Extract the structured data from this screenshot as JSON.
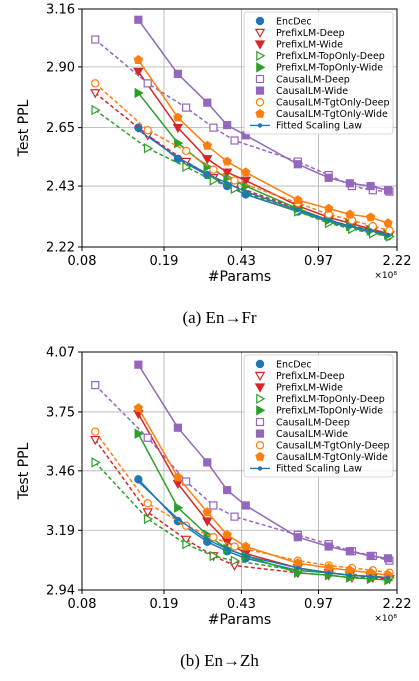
{
  "chart_data": [
    {
      "type": "line",
      "caption": "(a)  En→Fr",
      "xlabel": "#Params",
      "ylabel": "Test PPL",
      "x_multiplier": "×10⁸",
      "xlim": [
        0.08,
        2.22
      ],
      "ylim": [
        2.22,
        3.16
      ],
      "xticks": [
        "0.08",
        "0.19",
        "0.43",
        "0.97",
        "2.22"
      ],
      "yticks": [
        "2.22",
        "2.43",
        "2.65",
        "2.90",
        "3.16"
      ],
      "grid": true,
      "legend_position": "upper right",
      "series": [
        {
          "name": "EncDec",
          "color": "#1f77b4",
          "marker": "circle",
          "filled": true,
          "dashed": false,
          "x": [
            0.145,
            0.22,
            0.3,
            0.37,
            0.45,
            0.78,
            1.08,
            1.35,
            1.68,
            2.02
          ],
          "y": [
            2.65,
            2.53,
            2.47,
            2.43,
            2.4,
            2.34,
            2.305,
            2.285,
            2.27,
            2.255
          ]
        },
        {
          "name": "PrefixLM-Deep",
          "color": "#d62728",
          "marker": "triangle-down",
          "filled": false,
          "dashed": true,
          "x": [
            0.092,
            0.16,
            0.24,
            0.32,
            0.4,
            0.78,
            1.08,
            1.38,
            1.72,
            2.05
          ],
          "y": [
            2.79,
            2.62,
            2.52,
            2.46,
            2.43,
            2.35,
            2.31,
            2.29,
            2.275,
            2.26
          ]
        },
        {
          "name": "PrefixLM-Wide",
          "color": "#d62728",
          "marker": "triangle-down",
          "filled": true,
          "dashed": false,
          "x": [
            0.145,
            0.22,
            0.3,
            0.37,
            0.45,
            0.78,
            1.08,
            1.35,
            1.68,
            2.02
          ],
          "y": [
            2.88,
            2.65,
            2.53,
            2.48,
            2.45,
            2.36,
            2.32,
            2.3,
            2.28,
            2.265
          ]
        },
        {
          "name": "PrefixLM-TopOnly-Deep",
          "color": "#2ca02c",
          "marker": "triangle-right",
          "filled": false,
          "dashed": true,
          "x": [
            0.092,
            0.16,
            0.24,
            0.32,
            0.4,
            0.78,
            1.08,
            1.38,
            1.72,
            2.05
          ],
          "y": [
            2.72,
            2.57,
            2.5,
            2.45,
            2.42,
            2.34,
            2.3,
            2.28,
            2.265,
            2.255
          ]
        },
        {
          "name": "PrefixLM-TopOnly-Wide",
          "color": "#2ca02c",
          "marker": "triangle-right",
          "filled": true,
          "dashed": false,
          "x": [
            0.145,
            0.22,
            0.3,
            0.37,
            0.45,
            0.78,
            1.08,
            1.35,
            1.68,
            2.02
          ],
          "y": [
            2.79,
            2.59,
            2.5,
            2.46,
            2.43,
            2.35,
            2.31,
            2.29,
            2.275,
            2.26
          ]
        },
        {
          "name": "CausalLM-Deep",
          "color": "#9467bd",
          "marker": "square",
          "filled": false,
          "dashed": true,
          "x": [
            0.092,
            0.16,
            0.24,
            0.32,
            0.4,
            0.78,
            1.08,
            1.38,
            1.72,
            2.05
          ],
          "y": [
            3.02,
            2.83,
            2.73,
            2.65,
            2.6,
            2.52,
            2.47,
            2.43,
            2.415,
            2.41
          ]
        },
        {
          "name": "CausalLM-Wide",
          "color": "#9467bd",
          "marker": "square",
          "filled": true,
          "dashed": false,
          "x": [
            0.145,
            0.22,
            0.3,
            0.37,
            0.45,
            0.78,
            1.08,
            1.35,
            1.68,
            2.02
          ],
          "y": [
            3.11,
            2.87,
            2.75,
            2.66,
            2.62,
            2.51,
            2.46,
            2.44,
            2.43,
            2.415
          ]
        },
        {
          "name": "CausalLM-TgtOnly-Deep",
          "color": "#ff7f0e",
          "marker": "circle",
          "filled": false,
          "dashed": true,
          "x": [
            0.092,
            0.16,
            0.24,
            0.32,
            0.4,
            0.78,
            1.08,
            1.38,
            1.72,
            2.05
          ],
          "y": [
            2.83,
            2.64,
            2.56,
            2.49,
            2.45,
            2.37,
            2.33,
            2.31,
            2.29,
            2.275
          ]
        },
        {
          "name": "CausalLM-TgtOnly-Wide",
          "color": "#ff7f0e",
          "marker": "pentagon",
          "filled": true,
          "dashed": false,
          "x": [
            0.145,
            0.22,
            0.3,
            0.37,
            0.45,
            0.78,
            1.08,
            1.35,
            1.68,
            2.02
          ],
          "y": [
            2.93,
            2.69,
            2.58,
            2.52,
            2.48,
            2.38,
            2.35,
            2.33,
            2.32,
            2.3
          ]
        },
        {
          "name": "Fitted Scaling Law",
          "color": "#1f77b4",
          "marker": "dot",
          "filled": true,
          "dashed": false,
          "style": "fit",
          "x": [
            0.145,
            0.22,
            0.3,
            0.37,
            0.45,
            0.78,
            1.08,
            1.35,
            1.68,
            2.02
          ],
          "y": [
            2.64,
            2.535,
            2.475,
            2.44,
            2.41,
            2.345,
            2.31,
            2.29,
            2.275,
            2.26
          ]
        }
      ]
    },
    {
      "type": "line",
      "caption": "(b)  En→Zh",
      "xlabel": "#Params",
      "ylabel": "Test PPL",
      "x_multiplier": "×10⁸",
      "xlim": [
        0.08,
        2.22
      ],
      "ylim": [
        2.94,
        4.07
      ],
      "xticks": [
        "0.08",
        "0.19",
        "0.43",
        "0.97",
        "2.22"
      ],
      "yticks": [
        "2.94",
        "3.19",
        "3.46",
        "3.75",
        "4.07"
      ],
      "grid": true,
      "legend_position": "upper right",
      "series": [
        {
          "name": "EncDec",
          "color": "#1f77b4",
          "marker": "circle",
          "filled": true,
          "dashed": false,
          "x": [
            0.145,
            0.22,
            0.3,
            0.37,
            0.45,
            0.78,
            1.08,
            1.35,
            1.68,
            2.02
          ],
          "y": [
            3.42,
            3.23,
            3.14,
            3.1,
            3.07,
            3.02,
            3.01,
            3.0,
            2.995,
            2.99
          ]
        },
        {
          "name": "PrefixLM-Deep",
          "color": "#d62728",
          "marker": "triangle-down",
          "filled": false,
          "dashed": true,
          "x": [
            0.092,
            0.16,
            0.24,
            0.32,
            0.4,
            0.78,
            1.08,
            1.38,
            1.72,
            2.05
          ],
          "y": [
            3.61,
            3.27,
            3.15,
            3.08,
            3.04,
            3.01,
            3.0,
            2.99,
            2.99,
            2.985
          ]
        },
        {
          "name": "PrefixLM-Wide",
          "color": "#d62728",
          "marker": "triangle-down",
          "filled": true,
          "dashed": false,
          "x": [
            0.145,
            0.22,
            0.3,
            0.37,
            0.45,
            0.78,
            1.08,
            1.35,
            1.68,
            2.02
          ],
          "y": [
            3.74,
            3.4,
            3.23,
            3.14,
            3.09,
            3.03,
            3.01,
            3.0,
            2.995,
            2.99
          ]
        },
        {
          "name": "PrefixLM-TopOnly-Deep",
          "color": "#2ca02c",
          "marker": "triangle-right",
          "filled": false,
          "dashed": true,
          "x": [
            0.092,
            0.16,
            0.24,
            0.32,
            0.4,
            0.78,
            1.08,
            1.38,
            1.72,
            2.05
          ],
          "y": [
            3.5,
            3.24,
            3.13,
            3.08,
            3.06,
            3.02,
            3.01,
            3.0,
            2.995,
            2.99
          ]
        },
        {
          "name": "PrefixLM-TopOnly-Wide",
          "color": "#2ca02c",
          "marker": "triangle-right",
          "filled": true,
          "dashed": false,
          "x": [
            0.145,
            0.22,
            0.3,
            0.37,
            0.45,
            0.78,
            1.08,
            1.35,
            1.68,
            2.02
          ],
          "y": [
            3.64,
            3.29,
            3.17,
            3.11,
            3.08,
            3.01,
            3.0,
            2.99,
            2.985,
            2.98
          ]
        },
        {
          "name": "CausalLM-Deep",
          "color": "#9467bd",
          "marker": "square",
          "filled": false,
          "dashed": true,
          "x": [
            0.092,
            0.16,
            0.24,
            0.32,
            0.4,
            0.78,
            1.08,
            1.38,
            1.72,
            2.05
          ],
          "y": [
            3.89,
            3.62,
            3.41,
            3.3,
            3.25,
            3.17,
            3.13,
            3.1,
            3.08,
            3.06
          ]
        },
        {
          "name": "CausalLM-Wide",
          "color": "#9467bd",
          "marker": "square",
          "filled": true,
          "dashed": false,
          "x": [
            0.145,
            0.22,
            0.3,
            0.37,
            0.45,
            0.78,
            1.08,
            1.35,
            1.68,
            2.02
          ],
          "y": [
            4.0,
            3.67,
            3.5,
            3.37,
            3.3,
            3.16,
            3.12,
            3.1,
            3.08,
            3.07
          ]
        },
        {
          "name": "CausalLM-TgtOnly-Deep",
          "color": "#ff7f0e",
          "marker": "circle",
          "filled": false,
          "dashed": true,
          "x": [
            0.092,
            0.16,
            0.24,
            0.32,
            0.4,
            0.78,
            1.08,
            1.38,
            1.72,
            2.05
          ],
          "y": [
            3.65,
            3.31,
            3.21,
            3.16,
            3.12,
            3.06,
            3.04,
            3.03,
            3.02,
            3.01
          ]
        },
        {
          "name": "CausalLM-TgtOnly-Wide",
          "color": "#ff7f0e",
          "marker": "pentagon",
          "filled": true,
          "dashed": false,
          "x": [
            0.145,
            0.22,
            0.3,
            0.37,
            0.45,
            0.78,
            1.08,
            1.35,
            1.68,
            2.02
          ],
          "y": [
            3.77,
            3.43,
            3.27,
            3.17,
            3.12,
            3.05,
            3.03,
            3.02,
            3.01,
            3.0
          ]
        },
        {
          "name": "Fitted Scaling Law",
          "color": "#1f77b4",
          "marker": "dot",
          "filled": true,
          "dashed": false,
          "style": "fit",
          "x": [
            0.145,
            0.22,
            0.3,
            0.37,
            0.45,
            0.78,
            1.08,
            1.35,
            1.68,
            2.02
          ],
          "y": [
            3.41,
            3.24,
            3.15,
            3.11,
            3.08,
            3.03,
            3.01,
            3.0,
            2.995,
            2.99
          ]
        }
      ]
    }
  ]
}
